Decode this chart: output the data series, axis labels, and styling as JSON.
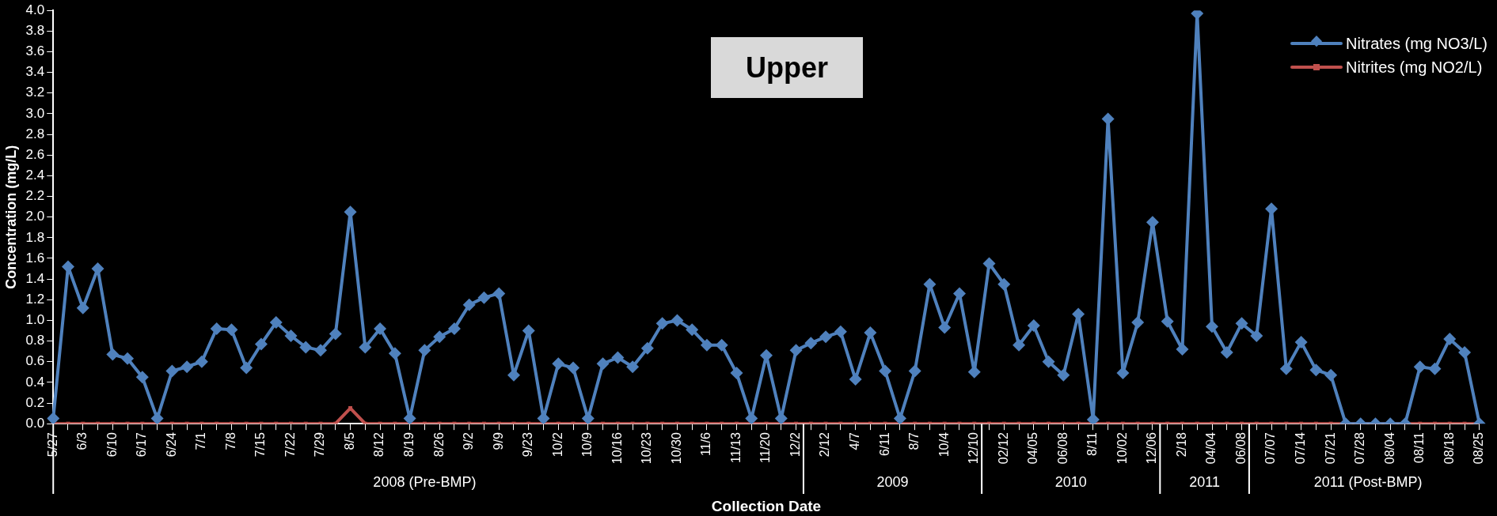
{
  "chart_data": {
    "type": "line",
    "xlabel": "Collection Date",
    "ylabel": "Concentration (mg/L)",
    "categories": [
      "5/27",
      null,
      "6/3",
      null,
      "6/10",
      null,
      "6/17",
      null,
      "6/24",
      null,
      "7/1",
      null,
      "7/8",
      null,
      "7/15",
      null,
      "7/22",
      null,
      "7/29",
      null,
      "8/5",
      null,
      "8/12",
      null,
      "8/19",
      null,
      "8/26",
      null,
      "9/2",
      null,
      "9/9",
      null,
      "9/23",
      null,
      "10/2",
      null,
      "10/9",
      null,
      "10/16",
      null,
      "10/23",
      null,
      "10/30",
      null,
      "11/6",
      null,
      "11/13",
      null,
      "11/20",
      null,
      "12/2",
      null,
      "2/12",
      null,
      "4/7",
      null,
      "6/11",
      null,
      "8/7",
      null,
      "10/4",
      null,
      "12/10",
      null,
      "02/12",
      null,
      "04/05",
      null,
      "06/08",
      null,
      "8/11",
      null,
      "10/02",
      null,
      "12/06",
      null,
      "2/18",
      null,
      "04/04",
      null,
      "06/08",
      null,
      "07/07",
      null,
      "07/14",
      null,
      "07/21",
      null,
      "07/28",
      null,
      "08/04",
      null,
      "08/11",
      null,
      "08/18",
      null,
      "08/25"
    ],
    "series": [
      {
        "name": "Nitrates (mg NO3/L)",
        "color": "#4f81bd",
        "marker": "diamond",
        "values": [
          0.05,
          1.52,
          1.12,
          1.5,
          0.67,
          0.63,
          0.45,
          0.05,
          0.51,
          0.55,
          0.6,
          0.92,
          0.91,
          0.54,
          0.77,
          0.98,
          0.85,
          0.74,
          0.71,
          0.87,
          2.05,
          0.74,
          0.92,
          0.68,
          0.05,
          0.71,
          0.84,
          0.92,
          1.15,
          1.22,
          1.26,
          0.47,
          0.9,
          0.05,
          0.58,
          0.54,
          0.05,
          0.58,
          0.64,
          0.55,
          0.73,
          0.97,
          1.0,
          0.91,
          0.76,
          0.76,
          0.49,
          0.05,
          0.66,
          0.05,
          0.71,
          0.78,
          0.84,
          0.89,
          0.43,
          0.88,
          0.51,
          0.05,
          0.51,
          1.35,
          0.93,
          1.26,
          0.5,
          1.55,
          1.35,
          0.76,
          0.95,
          0.6,
          0.47,
          1.06,
          0.04,
          2.95,
          0.49,
          0.98,
          1.95,
          0.99,
          0.72,
          3.97,
          0.94,
          0.69,
          0.97,
          0.85,
          2.08,
          0.53,
          0.79,
          0.52,
          0.47,
          0,
          0,
          0,
          0,
          0,
          0.55,
          0.53,
          0.82,
          0.69,
          0
        ]
      },
      {
        "name": "Nitrites (mg NO2/L)",
        "color": "#c0504d",
        "marker": "square",
        "values": [
          0,
          0,
          0,
          0,
          0,
          0,
          0,
          0,
          0,
          0,
          0,
          0,
          0,
          0,
          0,
          0,
          0,
          0,
          0,
          0,
          0.15,
          0,
          0,
          0,
          0,
          0,
          0,
          0,
          0,
          0,
          0,
          0,
          0,
          0,
          0,
          0,
          0,
          0,
          0,
          0,
          0,
          0,
          0,
          0,
          0,
          0,
          0,
          0,
          0,
          0,
          0,
          0,
          0,
          0,
          0,
          0,
          0,
          0,
          0,
          0,
          0,
          0,
          0,
          0,
          0,
          0,
          0,
          0,
          0,
          0,
          0,
          0,
          0,
          0,
          0,
          0,
          0,
          0,
          0,
          0,
          0,
          0,
          0,
          0,
          0,
          0,
          0,
          0,
          0,
          0,
          0,
          0,
          0,
          0,
          0,
          0,
          0
        ]
      }
    ],
    "ylim": [
      0,
      4
    ],
    "yticks": [
      {
        "value": 0,
        "label": "0.0"
      },
      0.2,
      0.4,
      0.6,
      0.8,
      {
        "value": 1,
        "label": "1.0"
      },
      1.2,
      1.4,
      1.6,
      1.8,
      {
        "value": 2,
        "label": "2.0"
      },
      2.2,
      2.4,
      2.6,
      2.8,
      {
        "value": 3,
        "label": "3.0"
      },
      3.2,
      3.4,
      3.6,
      3.8,
      {
        "value": 4,
        "label": "4.0"
      }
    ],
    "grid": false,
    "legend": "top right",
    "line_style": "solid",
    "annotations": [
      "Upper",
      "2008 (Pre-BMP)",
      "2009",
      "2010",
      "2011",
      "2011 (Post-BMP)"
    ]
  }
}
